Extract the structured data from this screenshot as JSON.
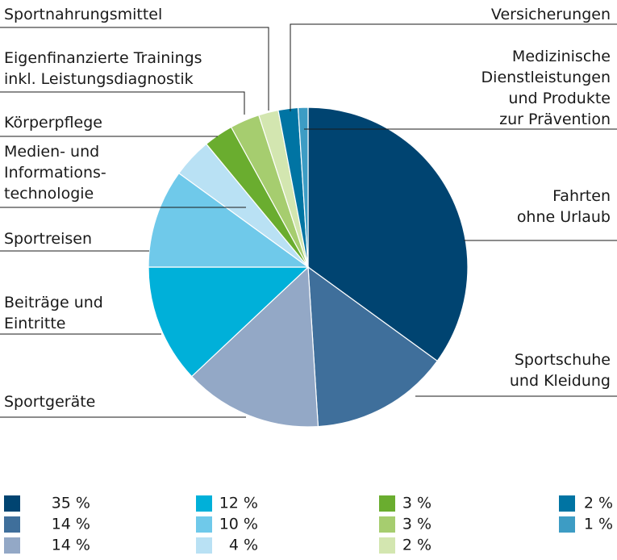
{
  "chart_data": {
    "type": "pie",
    "categories": [
      "Fahrten\nohne Urlaub",
      "Sportschuhe\nund Kleidung",
      "Sportgeräte",
      "Beiträge und\nEintritte",
      "Sportreisen",
      "Medien- und\nInformations-\ntechnologie",
      "Körperpflege",
      "Eigenfinanzierte Trainings\ninkl. Leistungsdiagnostik",
      "Sportnahrungsmittel",
      "Versicherungen",
      "Medizinische\nDienstleistungen\nund Produkte\nzur Prävention"
    ],
    "values": [
      35,
      14,
      14,
      12,
      10,
      4,
      3,
      3,
      2,
      2,
      1
    ],
    "value_labels": [
      "35 %",
      "14 %",
      "14 %",
      "12 %",
      "10 %",
      "4 %",
      "3 %",
      "3 %",
      "2 %",
      "2 %",
      "1 %"
    ],
    "colors": [
      "#004471",
      "#3f6f9b",
      "#93a8c6",
      "#00b0d9",
      "#6fc9ea",
      "#b9e1f4",
      "#6aad2f",
      "#a6cd6f",
      "#d3e6b0",
      "#0074a3",
      "#3d9cc4"
    ]
  }
}
